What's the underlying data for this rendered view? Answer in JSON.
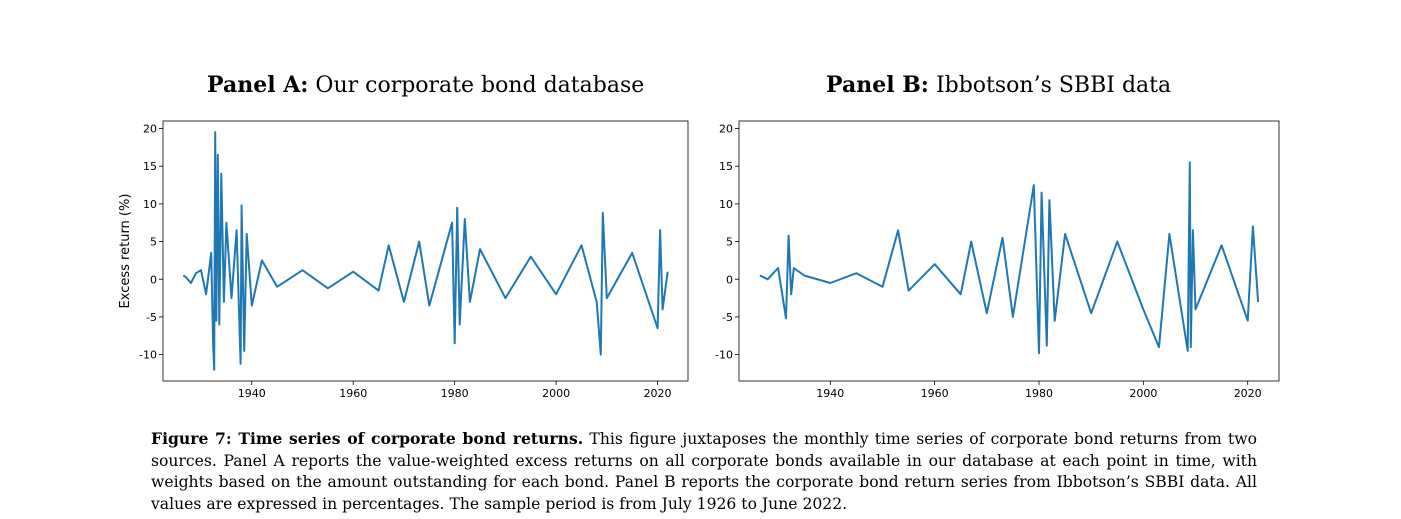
{
  "figure": {
    "panel_a": {
      "label": "Panel A:",
      "title": "Our corporate bond database"
    },
    "panel_b": {
      "label": "Panel B:",
      "title": "Ibbotson’s SBBI data"
    },
    "caption": {
      "label": "Figure 7: Time series of corporate bond returns.",
      "text": "This figure juxtaposes the monthly time series of corporate bond returns from two sources. Panel A reports the value-weighted excess returns on all corporate bonds available in our database at each point in time, with weights based on the amount outstanding for each bond. Panel B reports the corporate bond return series from Ibbotson’s SBBI data. All values are expressed in percentages. The sample period is from July 1926 to June 2022."
    }
  },
  "chart_data": [
    {
      "type": "line",
      "title": "Panel A: Our corporate bond database",
      "xlabel": "",
      "ylabel": "Excess return (%)",
      "xlim": [
        1922.5,
        2026
      ],
      "ylim": [
        -13.5,
        21
      ],
      "xticks": [
        1940,
        1960,
        1980,
        2000,
        2020
      ],
      "yticks": [
        -10,
        -5,
        0,
        5,
        10,
        15,
        20
      ],
      "color": "#1f77b4",
      "grid": false,
      "series": [
        {
          "x": [
            1926.5,
            1927,
            1928,
            1929,
            1930,
            1931,
            1932,
            1932.4,
            1932.6,
            1932.8,
            1933,
            1933.3,
            1933.6,
            1934,
            1934.5,
            1935,
            1936,
            1937,
            1937.8,
            1938,
            1938.5,
            1939,
            1940,
            1942,
            1945,
            1950,
            1955,
            1960,
            1965,
            1967,
            1970,
            1973,
            1975,
            1979.5,
            1980,
            1980.5,
            1981,
            1982,
            1983,
            1985,
            1990,
            1995,
            2000,
            2005,
            2008,
            2008.8,
            2009.2,
            2010,
            2015,
            2020,
            2020.5,
            2021,
            2022
          ],
          "y": [
            0.5,
            0.3,
            -0.5,
            0.8,
            1.2,
            -2.0,
            3.5,
            -9.0,
            -12.0,
            19.5,
            -5.5,
            16.5,
            -6.0,
            14.0,
            -3.0,
            7.5,
            -2.5,
            6.5,
            -11.2,
            9.8,
            -9.5,
            6.0,
            -3.5,
            2.5,
            -1.0,
            1.2,
            -1.2,
            1.0,
            -1.5,
            4.5,
            -3.0,
            5.0,
            -3.5,
            7.5,
            -8.5,
            9.5,
            -6.0,
            8.0,
            -3.0,
            4.0,
            -2.5,
            3.0,
            -2.0,
            4.5,
            -3.0,
            -10.0,
            8.8,
            -2.5,
            3.5,
            -6.5,
            6.5,
            -4.0,
            1.0
          ]
        }
      ]
    },
    {
      "type": "line",
      "title": "Panel B: Ibbotson’s SBBI data",
      "xlabel": "",
      "ylabel": "",
      "xlim": [
        1922.5,
        2026
      ],
      "ylim": [
        -13.5,
        21
      ],
      "xticks": [
        1940,
        1960,
        1980,
        2000,
        2020
      ],
      "yticks": [
        -10,
        -5,
        0,
        5,
        10,
        15,
        20
      ],
      "color": "#1f77b4",
      "grid": false,
      "series": [
        {
          "x": [
            1926.5,
            1928,
            1930,
            1931.5,
            1932,
            1932.5,
            1933,
            1935,
            1940,
            1945,
            1950,
            1953,
            1955,
            1960,
            1965,
            1967,
            1970,
            1973,
            1975,
            1979,
            1980,
            1980.5,
            1981.5,
            1982,
            1983,
            1985,
            1990,
            1995,
            2000,
            2003,
            2005,
            2008.5,
            2008.9,
            2009.1,
            2009.5,
            2010,
            2015,
            2020,
            2021,
            2022
          ],
          "y": [
            0.5,
            0.0,
            1.5,
            -5.2,
            5.8,
            -2.0,
            1.5,
            0.5,
            -0.5,
            0.8,
            -1.0,
            6.5,
            -1.5,
            2.0,
            -2.0,
            5.0,
            -4.5,
            5.5,
            -5.0,
            12.5,
            -9.8,
            11.5,
            -8.8,
            10.5,
            -5.5,
            6.0,
            -4.5,
            5.0,
            -4.0,
            -9.0,
            6.0,
            -9.5,
            15.5,
            -9.0,
            6.5,
            -4.0,
            4.5,
            -5.5,
            7.0,
            -3.0
          ]
        }
      ]
    }
  ]
}
